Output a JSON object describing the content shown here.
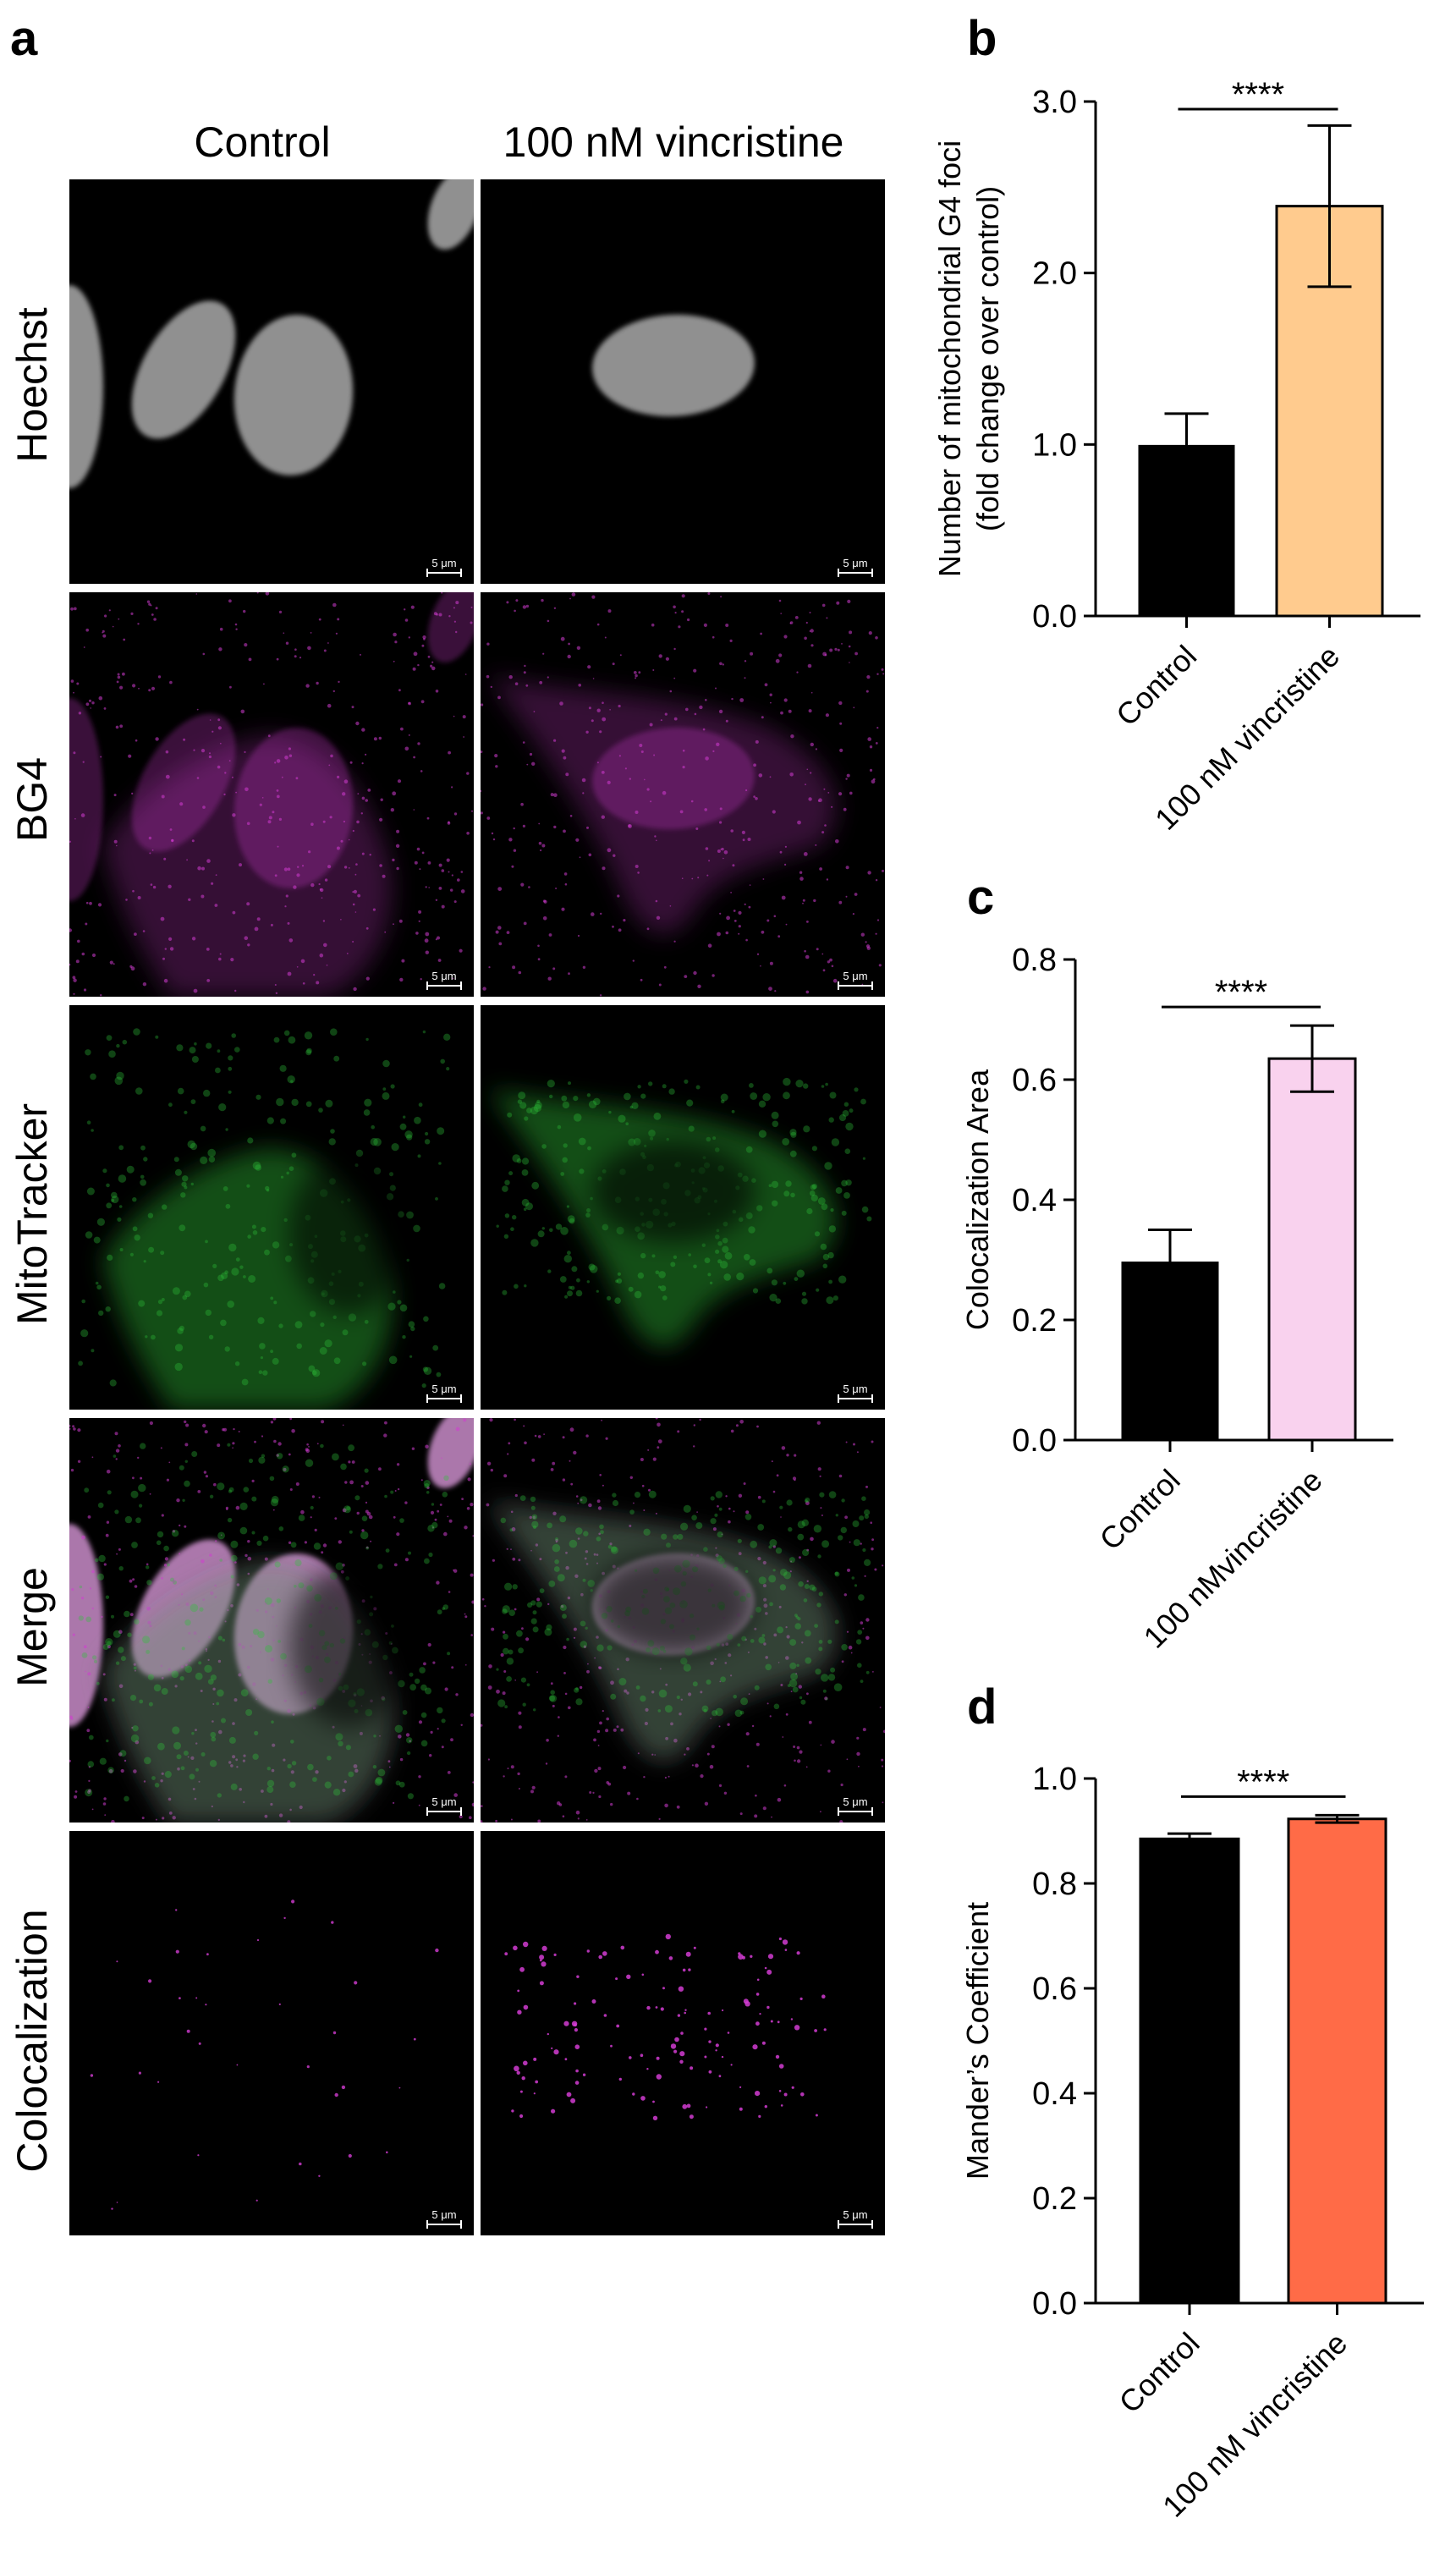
{
  "panel_a": {
    "label": "a",
    "columns": [
      "Control",
      "100 nM vincristine"
    ],
    "rows": [
      "Hoechst",
      "BG4",
      "MitoTracker",
      "Merge",
      "Colocalization"
    ],
    "scale_bar_label": "5 μm",
    "colors": {
      "BG4": "#d23cd2",
      "MitoTracker": "#2ec43a",
      "Hoechst": "#b4b4b4"
    }
  },
  "chart_data": [
    {
      "panel": "b",
      "type": "bar",
      "categories": [
        "Control",
        "100 nM vincristine"
      ],
      "values": [
        0.99,
        2.39
      ],
      "error": [
        0.19,
        0.47
      ],
      "ylabel": "Number of mitochondrial G4 foci",
      "ylabel2": "(fold change over control)",
      "ylim": [
        0,
        3.0
      ],
      "yticks": [
        "0.0",
        "1.0",
        "2.0",
        "3.0"
      ],
      "significance": "****",
      "colors": [
        "#000000",
        "#ffcb8e"
      ],
      "grid": false
    },
    {
      "panel": "c",
      "type": "bar",
      "categories": [
        "Control",
        "100 nMvincristine"
      ],
      "values": [
        0.295,
        0.635
      ],
      "error": [
        0.055,
        0.055
      ],
      "ylabel": "Colocalization Area",
      "ylim": [
        0,
        0.8
      ],
      "yticks": [
        "0.0",
        "0.2",
        "0.4",
        "0.6",
        "0.8"
      ],
      "significance": "****",
      "colors": [
        "#000000",
        "#f9d2ee"
      ],
      "grid": false
    },
    {
      "panel": "d",
      "type": "bar",
      "categories": [
        "Control",
        "100 nM vincristine"
      ],
      "values": [
        0.885,
        0.923
      ],
      "error": [
        0.01,
        0.007
      ],
      "ylabel": "Mander’s Coefficient",
      "ylim": [
        0,
        1.0
      ],
      "yticks": [
        "0.0",
        "0.2",
        "0.4",
        "0.6",
        "0.8",
        "1.0"
      ],
      "significance": "****",
      "colors": [
        "#000000",
        "#ff6b47"
      ],
      "grid": false
    }
  ]
}
